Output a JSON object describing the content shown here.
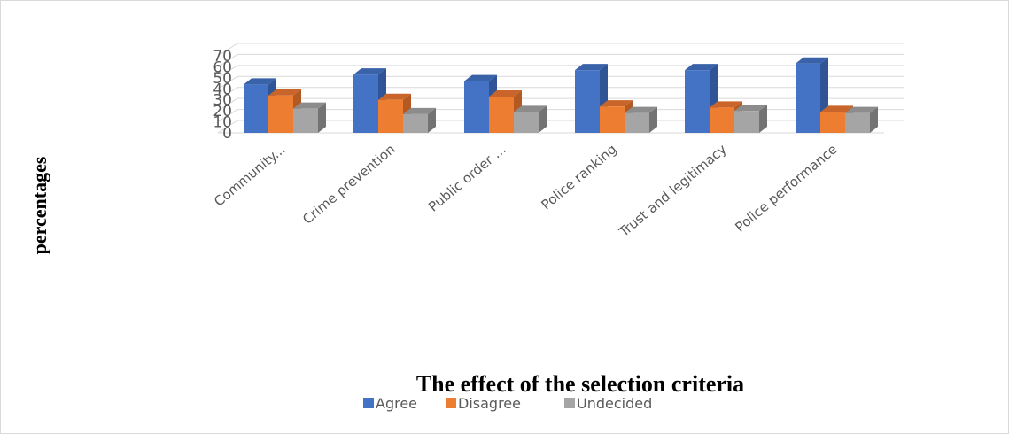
{
  "chart_data": {
    "type": "bar",
    "title": "",
    "xlabel": "The effect of the selection criteria",
    "ylabel": "percentages",
    "ylim": [
      0,
      70
    ],
    "yticks": [
      0,
      10,
      20,
      30,
      40,
      50,
      60,
      70
    ],
    "categories": [
      "Community...",
      "Crime prevention",
      "Public order ...",
      "Police ranking",
      "Trust and legitimacy",
      "Police performance"
    ],
    "series": [
      {
        "name": "Agree",
        "values": [
          44,
          53,
          47,
          57,
          57,
          63
        ],
        "color": "#4472C4",
        "top": "#3A62A8",
        "side": "#2F5597"
      },
      {
        "name": "Disagree",
        "values": [
          34,
          30,
          33,
          24,
          23,
          19
        ],
        "color": "#ED7D31",
        "top": "#C9652A",
        "side": "#B35A22"
      },
      {
        "name": "Undecided",
        "values": [
          22,
          17,
          19,
          18,
          20,
          18
        ],
        "color": "#A5A5A5",
        "top": "#8C8C8C",
        "side": "#737373"
      }
    ],
    "grid": true,
    "legend": "bottom",
    "style": "3d-column"
  }
}
